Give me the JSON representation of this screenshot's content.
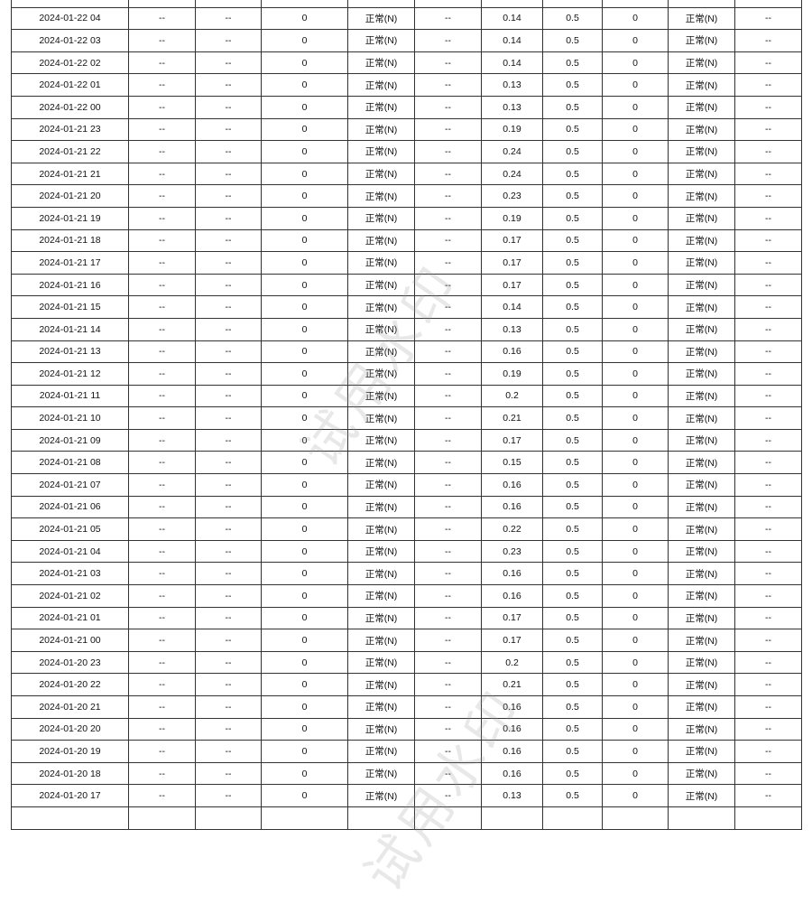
{
  "watermark": "试用水印",
  "placeholder": "--",
  "status_normal": "正常(N)",
  "rows": [
    {
      "time": "2024-01-22 04",
      "value": "0.14"
    },
    {
      "time": "2024-01-22 03",
      "value": "0.14"
    },
    {
      "time": "2024-01-22 02",
      "value": "0.14"
    },
    {
      "time": "2024-01-22 01",
      "value": "0.13"
    },
    {
      "time": "2024-01-22 00",
      "value": "0.13"
    },
    {
      "time": "2024-01-21 23",
      "value": "0.19"
    },
    {
      "time": "2024-01-21 22",
      "value": "0.24"
    },
    {
      "time": "2024-01-21 21",
      "value": "0.24"
    },
    {
      "time": "2024-01-21 20",
      "value": "0.23"
    },
    {
      "time": "2024-01-21 19",
      "value": "0.19"
    },
    {
      "time": "2024-01-21 18",
      "value": "0.17"
    },
    {
      "time": "2024-01-21 17",
      "value": "0.17"
    },
    {
      "time": "2024-01-21 16",
      "value": "0.17"
    },
    {
      "time": "2024-01-21 15",
      "value": "0.14"
    },
    {
      "time": "2024-01-21 14",
      "value": "0.13"
    },
    {
      "time": "2024-01-21 13",
      "value": "0.16"
    },
    {
      "time": "2024-01-21 12",
      "value": "0.19"
    },
    {
      "time": "2024-01-21 11",
      "value": "0.2"
    },
    {
      "time": "2024-01-21 10",
      "value": "0.21"
    },
    {
      "time": "2024-01-21 09",
      "value": "0.17"
    },
    {
      "time": "2024-01-21 08",
      "value": "0.15"
    },
    {
      "time": "2024-01-21 07",
      "value": "0.16"
    },
    {
      "time": "2024-01-21 06",
      "value": "0.16"
    },
    {
      "time": "2024-01-21 05",
      "value": "0.22"
    },
    {
      "time": "2024-01-21 04",
      "value": "0.23"
    },
    {
      "time": "2024-01-21 03",
      "value": "0.16"
    },
    {
      "time": "2024-01-21 02",
      "value": "0.16"
    },
    {
      "time": "2024-01-21 01",
      "value": "0.17"
    },
    {
      "time": "2024-01-21 00",
      "value": "0.17"
    },
    {
      "time": "2024-01-20 23",
      "value": "0.2"
    },
    {
      "time": "2024-01-20 22",
      "value": "0.21"
    },
    {
      "time": "2024-01-20 21",
      "value": "0.16"
    },
    {
      "time": "2024-01-20 20",
      "value": "0.16"
    },
    {
      "time": "2024-01-20 19",
      "value": "0.16"
    },
    {
      "time": "2024-01-20 18",
      "value": "0.16"
    },
    {
      "time": "2024-01-20 17",
      "value": "0.13"
    }
  ],
  "col_a": "0",
  "limit": "0.5",
  "col_b": "0"
}
